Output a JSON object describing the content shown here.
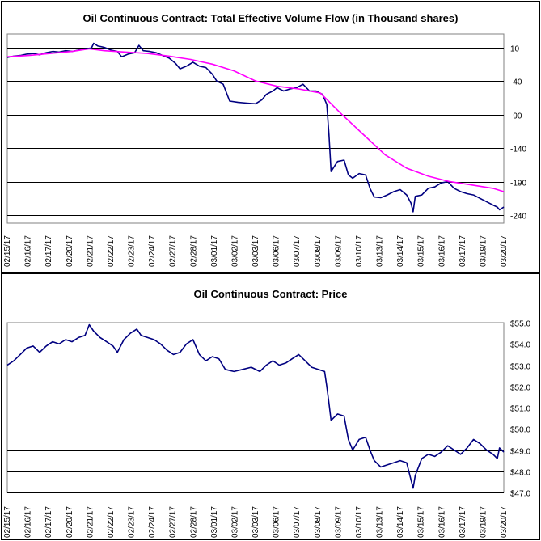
{
  "chart_data": [
    {
      "type": "line",
      "title": "Oil Continuous Contract: Total Effective Volume Flow (in Thousand shares)",
      "categories": [
        "02/15/17",
        "02/16/17",
        "02/17/17",
        "02/20/17",
        "02/21/17",
        "02/22/17",
        "02/23/17",
        "02/24/17",
        "02/27/17",
        "02/28/17",
        "03/01/17",
        "03/02/17",
        "03/03/17",
        "03/06/17",
        "03/07/17",
        "03/08/17",
        "03/09/17",
        "03/10/17",
        "03/13/17",
        "03/14/17",
        "03/15/17",
        "03/16/17",
        "03/17/17",
        "03/19/17",
        "03/20/17"
      ],
      "yticks": [
        10,
        -40,
        -90,
        -140,
        -190,
        -240
      ],
      "ylim": [
        -252,
        30
      ],
      "grid": true,
      "series": [
        {
          "color": "#000080",
          "values": [
            [
              0,
              -5
            ],
            [
              0.03,
              -3
            ],
            [
              0.06,
              -2
            ],
            [
              0.09,
              0
            ],
            [
              0.12,
              1
            ],
            [
              0.15,
              -1
            ],
            [
              0.18,
              2
            ],
            [
              0.21,
              4
            ],
            [
              0.24,
              3
            ],
            [
              0.27,
              5
            ],
            [
              0.3,
              4
            ],
            [
              0.33,
              6
            ],
            [
              0.36,
              8
            ],
            [
              0.39,
              9
            ],
            [
              0.4,
              16
            ],
            [
              0.42,
              12
            ],
            [
              0.45,
              10
            ],
            [
              0.48,
              6
            ],
            [
              0.51,
              4
            ],
            [
              0.53,
              -4
            ],
            [
              0.56,
              0
            ],
            [
              0.59,
              2
            ],
            [
              0.61,
              13
            ],
            [
              0.63,
              5
            ],
            [
              0.66,
              4
            ],
            [
              0.69,
              2
            ],
            [
              0.72,
              -2
            ],
            [
              0.75,
              -6
            ],
            [
              0.78,
              -14
            ],
            [
              0.8,
              -22
            ],
            [
              0.83,
              -18
            ],
            [
              0.86,
              -12
            ],
            [
              0.89,
              -18
            ],
            [
              0.92,
              -20
            ],
            [
              0.95,
              -30
            ],
            [
              0.97,
              -40
            ],
            [
              1.0,
              -45
            ],
            [
              1.03,
              -70
            ],
            [
              1.07,
              -72
            ],
            [
              1.11,
              -73
            ],
            [
              1.15,
              -74
            ],
            [
              1.18,
              -68
            ],
            [
              1.2,
              -60
            ],
            [
              1.23,
              -55
            ],
            [
              1.25,
              -50
            ],
            [
              1.28,
              -55
            ],
            [
              1.31,
              -52
            ],
            [
              1.34,
              -50
            ],
            [
              1.37,
              -45
            ],
            [
              1.4,
              -55
            ],
            [
              1.43,
              -55
            ],
            [
              1.46,
              -60
            ],
            [
              1.48,
              -75
            ],
            [
              1.49,
              -120
            ],
            [
              1.5,
              -175
            ],
            [
              1.53,
              -160
            ],
            [
              1.56,
              -158
            ],
            [
              1.58,
              -180
            ],
            [
              1.6,
              -185
            ],
            [
              1.63,
              -178
            ],
            [
              1.66,
              -180
            ],
            [
              1.68,
              -200
            ],
            [
              1.7,
              -213
            ],
            [
              1.73,
              -214
            ],
            [
              1.76,
              -210
            ],
            [
              1.79,
              -205
            ],
            [
              1.82,
              -202
            ],
            [
              1.85,
              -210
            ],
            [
              1.87,
              -222
            ],
            [
              1.88,
              -235
            ],
            [
              1.89,
              -212
            ],
            [
              1.92,
              -210
            ],
            [
              1.95,
              -200
            ],
            [
              1.98,
              -198
            ],
            [
              2.01,
              -192
            ],
            [
              2.04,
              -190
            ],
            [
              2.07,
              -200
            ],
            [
              2.1,
              -205
            ],
            [
              2.13,
              -208
            ],
            [
              2.16,
              -210
            ],
            [
              2.19,
              -215
            ],
            [
              2.22,
              -220
            ],
            [
              2.25,
              -225
            ],
            [
              2.27,
              -228
            ],
            [
              2.28,
              -232
            ],
            [
              2.3,
              -228
            ]
          ]
        },
        {
          "color": "#ff00ff",
          "values": [
            [
              0,
              -4
            ],
            [
              0.1,
              -2
            ],
            [
              0.2,
              1
            ],
            [
              0.3,
              4
            ],
            [
              0.38,
              8
            ],
            [
              0.45,
              5
            ],
            [
              0.55,
              3
            ],
            [
              0.65,
              1
            ],
            [
              0.75,
              -3
            ],
            [
              0.85,
              -8
            ],
            [
              0.95,
              -15
            ],
            [
              1.05,
              -25
            ],
            [
              1.15,
              -40
            ],
            [
              1.25,
              -48
            ],
            [
              1.35,
              -52
            ],
            [
              1.45,
              -58
            ],
            [
              1.55,
              -90
            ],
            [
              1.65,
              -120
            ],
            [
              1.75,
              -150
            ],
            [
              1.85,
              -170
            ],
            [
              1.95,
              -182
            ],
            [
              2.05,
              -190
            ],
            [
              2.15,
              -195
            ],
            [
              2.25,
              -200
            ],
            [
              2.3,
              -205
            ]
          ]
        }
      ]
    },
    {
      "type": "line",
      "title": "Oil Continuous Contract: Price",
      "categories": [
        "02/15/17",
        "02/16/17",
        "02/17/17",
        "02/20/17",
        "02/21/17",
        "02/22/17",
        "02/23/17",
        "02/24/17",
        "02/27/17",
        "02/28/17",
        "03/01/17",
        "03/02/17",
        "03/03/17",
        "03/06/17",
        "03/07/17",
        "03/08/17",
        "03/09/17",
        "03/10/17",
        "03/13/17",
        "03/14/17",
        "03/15/17",
        "03/16/17",
        "03/17/17",
        "03/19/17",
        "03/20/17"
      ],
      "yticks": [
        "$55.0",
        "$54.0",
        "$53.0",
        "$52.0",
        "$51.0",
        "$50.0",
        "$49.0",
        "$48.0",
        "$47.0"
      ],
      "ylim": [
        47.0,
        55.0
      ],
      "grid": true,
      "series": [
        {
          "color": "#000080",
          "values": [
            [
              0,
              53.0
            ],
            [
              0.03,
              53.2
            ],
            [
              0.06,
              53.5
            ],
            [
              0.09,
              53.8
            ],
            [
              0.12,
              53.9
            ],
            [
              0.15,
              53.6
            ],
            [
              0.18,
              53.9
            ],
            [
              0.21,
              54.1
            ],
            [
              0.24,
              54.0
            ],
            [
              0.27,
              54.2
            ],
            [
              0.3,
              54.1
            ],
            [
              0.33,
              54.3
            ],
            [
              0.36,
              54.4
            ],
            [
              0.38,
              54.9
            ],
            [
              0.4,
              54.6
            ],
            [
              0.43,
              54.3
            ],
            [
              0.46,
              54.1
            ],
            [
              0.49,
              53.9
            ],
            [
              0.51,
              53.6
            ],
            [
              0.54,
              54.2
            ],
            [
              0.57,
              54.5
            ],
            [
              0.6,
              54.7
            ],
            [
              0.62,
              54.4
            ],
            [
              0.65,
              54.3
            ],
            [
              0.68,
              54.2
            ],
            [
              0.71,
              54.0
            ],
            [
              0.74,
              53.7
            ],
            [
              0.77,
              53.5
            ],
            [
              0.8,
              53.6
            ],
            [
              0.83,
              54.0
            ],
            [
              0.86,
              54.2
            ],
            [
              0.89,
              53.5
            ],
            [
              0.92,
              53.2
            ],
            [
              0.95,
              53.4
            ],
            [
              0.98,
              53.3
            ],
            [
              1.01,
              52.8
            ],
            [
              1.05,
              52.7
            ],
            [
              1.09,
              52.8
            ],
            [
              1.13,
              52.9
            ],
            [
              1.17,
              52.7
            ],
            [
              1.2,
              53.0
            ],
            [
              1.23,
              53.2
            ],
            [
              1.26,
              53.0
            ],
            [
              1.29,
              53.1
            ],
            [
              1.32,
              53.3
            ],
            [
              1.35,
              53.5
            ],
            [
              1.38,
              53.2
            ],
            [
              1.41,
              52.9
            ],
            [
              1.44,
              52.8
            ],
            [
              1.47,
              52.7
            ],
            [
              1.48,
              52.0
            ],
            [
              1.49,
              51.2
            ],
            [
              1.5,
              50.4
            ],
            [
              1.53,
              50.7
            ],
            [
              1.56,
              50.6
            ],
            [
              1.58,
              49.5
            ],
            [
              1.6,
              49.0
            ],
            [
              1.63,
              49.5
            ],
            [
              1.66,
              49.6
            ],
            [
              1.68,
              49.0
            ],
            [
              1.7,
              48.5
            ],
            [
              1.73,
              48.2
            ],
            [
              1.76,
              48.3
            ],
            [
              1.79,
              48.4
            ],
            [
              1.82,
              48.5
            ],
            [
              1.85,
              48.4
            ],
            [
              1.87,
              47.6
            ],
            [
              1.88,
              47.2
            ],
            [
              1.89,
              47.8
            ],
            [
              1.92,
              48.6
            ],
            [
              1.95,
              48.8
            ],
            [
              1.98,
              48.7
            ],
            [
              2.01,
              48.9
            ],
            [
              2.04,
              49.2
            ],
            [
              2.07,
              49.0
            ],
            [
              2.1,
              48.8
            ],
            [
              2.13,
              49.1
            ],
            [
              2.16,
              49.5
            ],
            [
              2.19,
              49.3
            ],
            [
              2.22,
              49.0
            ],
            [
              2.25,
              48.8
            ],
            [
              2.27,
              48.6
            ],
            [
              2.28,
              49.1
            ],
            [
              2.3,
              48.9
            ]
          ]
        }
      ]
    }
  ]
}
